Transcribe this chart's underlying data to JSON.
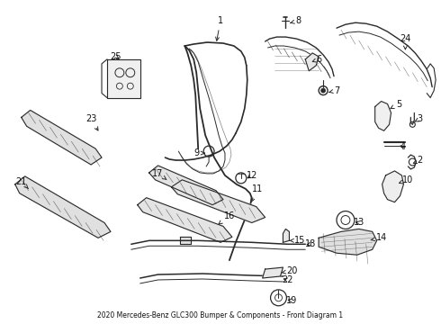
{
  "title": "2020 Mercedes-Benz GLC300 Bumper & Components - Front Diagram 1",
  "background_color": "#ffffff",
  "line_color": "#2a2a2a",
  "text_color": "#111111",
  "fig_width": 4.9,
  "fig_height": 3.6,
  "dpi": 100
}
